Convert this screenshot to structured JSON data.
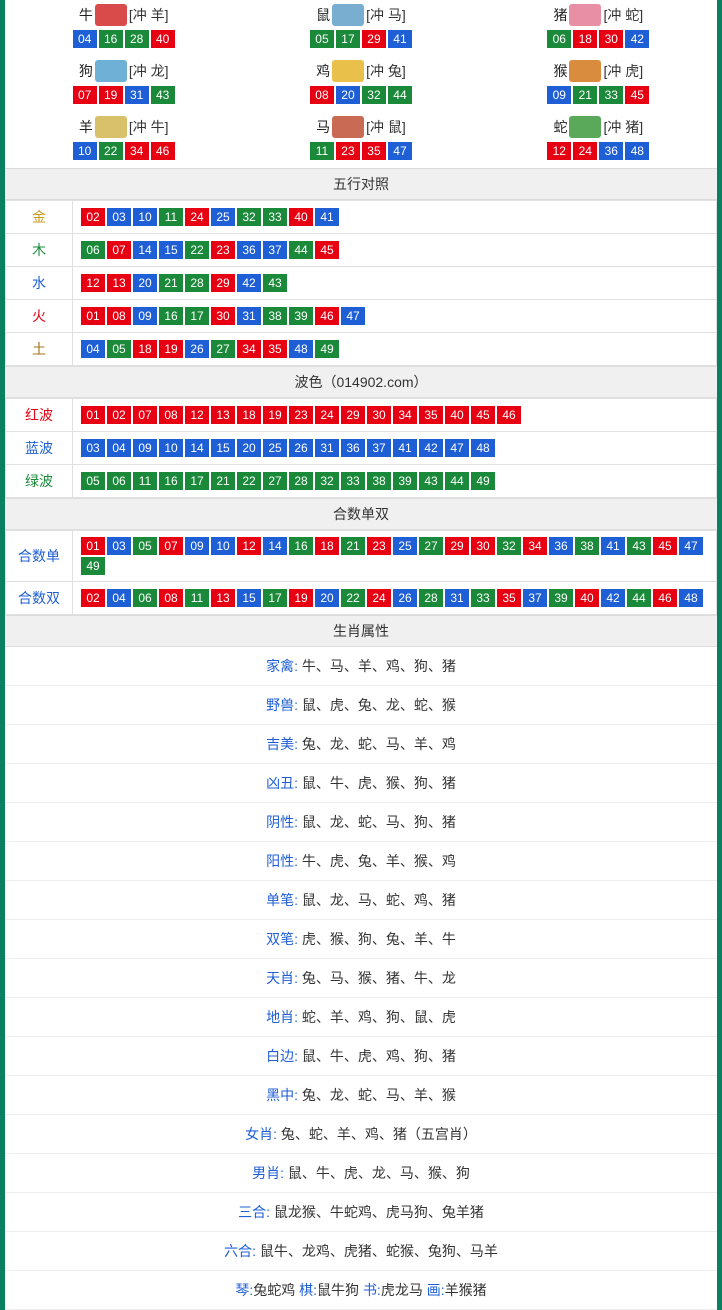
{
  "zodiacs": [
    {
      "name": "牛",
      "conflict": "[冲 羊]",
      "icon_color": "#d94b4b",
      "nums": [
        {
          "n": "04",
          "c": "blue"
        },
        {
          "n": "16",
          "c": "green"
        },
        {
          "n": "28",
          "c": "green"
        },
        {
          "n": "40",
          "c": "red"
        }
      ]
    },
    {
      "name": "鼠",
      "conflict": "[冲 马]",
      "icon_color": "#7aaed1",
      "nums": [
        {
          "n": "05",
          "c": "green"
        },
        {
          "n": "17",
          "c": "green"
        },
        {
          "n": "29",
          "c": "red"
        },
        {
          "n": "41",
          "c": "blue"
        }
      ]
    },
    {
      "name": "猪",
      "conflict": "[冲 蛇]",
      "icon_color": "#e88fa5",
      "nums": [
        {
          "n": "06",
          "c": "green"
        },
        {
          "n": "18",
          "c": "red"
        },
        {
          "n": "30",
          "c": "red"
        },
        {
          "n": "42",
          "c": "blue"
        }
      ]
    },
    {
      "name": "狗",
      "conflict": "[冲 龙]",
      "icon_color": "#6fb1d6",
      "nums": [
        {
          "n": "07",
          "c": "red"
        },
        {
          "n": "19",
          "c": "red"
        },
        {
          "n": "31",
          "c": "blue"
        },
        {
          "n": "43",
          "c": "green"
        }
      ]
    },
    {
      "name": "鸡",
      "conflict": "[冲 兔]",
      "icon_color": "#e8c04a",
      "nums": [
        {
          "n": "08",
          "c": "red"
        },
        {
          "n": "20",
          "c": "blue"
        },
        {
          "n": "32",
          "c": "green"
        },
        {
          "n": "44",
          "c": "green"
        }
      ]
    },
    {
      "name": "猴",
      "conflict": "[冲 虎]",
      "icon_color": "#d98b3e",
      "nums": [
        {
          "n": "09",
          "c": "blue"
        },
        {
          "n": "21",
          "c": "green"
        },
        {
          "n": "33",
          "c": "green"
        },
        {
          "n": "45",
          "c": "red"
        }
      ]
    },
    {
      "name": "羊",
      "conflict": "[冲 牛]",
      "icon_color": "#d9c06a",
      "nums": [
        {
          "n": "10",
          "c": "blue"
        },
        {
          "n": "22",
          "c": "green"
        },
        {
          "n": "34",
          "c": "red"
        },
        {
          "n": "46",
          "c": "red"
        }
      ]
    },
    {
      "name": "马",
      "conflict": "[冲 鼠]",
      "icon_color": "#c96a54",
      "nums": [
        {
          "n": "11",
          "c": "green"
        },
        {
          "n": "23",
          "c": "red"
        },
        {
          "n": "35",
          "c": "red"
        },
        {
          "n": "47",
          "c": "blue"
        }
      ]
    },
    {
      "name": "蛇",
      "conflict": "[冲 猪]",
      "icon_color": "#5aa85a",
      "nums": [
        {
          "n": "12",
          "c": "red"
        },
        {
          "n": "24",
          "c": "red"
        },
        {
          "n": "36",
          "c": "blue"
        },
        {
          "n": "48",
          "c": "blue"
        }
      ]
    }
  ],
  "sections": {
    "wuxing": {
      "title": "五行对照",
      "rows": [
        {
          "label": "金",
          "label_class": "c-gold",
          "nums": [
            {
              "n": "02",
              "c": "red"
            },
            {
              "n": "03",
              "c": "blue"
            },
            {
              "n": "10",
              "c": "blue"
            },
            {
              "n": "11",
              "c": "green"
            },
            {
              "n": "24",
              "c": "red"
            },
            {
              "n": "25",
              "c": "blue"
            },
            {
              "n": "32",
              "c": "green"
            },
            {
              "n": "33",
              "c": "green"
            },
            {
              "n": "40",
              "c": "red"
            },
            {
              "n": "41",
              "c": "blue"
            }
          ]
        },
        {
          "label": "木",
          "label_class": "c-wood",
          "nums": [
            {
              "n": "06",
              "c": "green"
            },
            {
              "n": "07",
              "c": "red"
            },
            {
              "n": "14",
              "c": "blue"
            },
            {
              "n": "15",
              "c": "blue"
            },
            {
              "n": "22",
              "c": "green"
            },
            {
              "n": "23",
              "c": "red"
            },
            {
              "n": "36",
              "c": "blue"
            },
            {
              "n": "37",
              "c": "blue"
            },
            {
              "n": "44",
              "c": "green"
            },
            {
              "n": "45",
              "c": "red"
            }
          ]
        },
        {
          "label": "水",
          "label_class": "c-water",
          "nums": [
            {
              "n": "12",
              "c": "red"
            },
            {
              "n": "13",
              "c": "red"
            },
            {
              "n": "20",
              "c": "blue"
            },
            {
              "n": "21",
              "c": "green"
            },
            {
              "n": "28",
              "c": "green"
            },
            {
              "n": "29",
              "c": "red"
            },
            {
              "n": "42",
              "c": "blue"
            },
            {
              "n": "43",
              "c": "green"
            }
          ]
        },
        {
          "label": "火",
          "label_class": "c-fire",
          "nums": [
            {
              "n": "01",
              "c": "red"
            },
            {
              "n": "08",
              "c": "red"
            },
            {
              "n": "09",
              "c": "blue"
            },
            {
              "n": "16",
              "c": "green"
            },
            {
              "n": "17",
              "c": "green"
            },
            {
              "n": "30",
              "c": "red"
            },
            {
              "n": "31",
              "c": "blue"
            },
            {
              "n": "38",
              "c": "green"
            },
            {
              "n": "39",
              "c": "green"
            },
            {
              "n": "46",
              "c": "red"
            },
            {
              "n": "47",
              "c": "blue"
            }
          ]
        },
        {
          "label": "土",
          "label_class": "c-earth",
          "nums": [
            {
              "n": "04",
              "c": "blue"
            },
            {
              "n": "05",
              "c": "green"
            },
            {
              "n": "18",
              "c": "red"
            },
            {
              "n": "19",
              "c": "red"
            },
            {
              "n": "26",
              "c": "blue"
            },
            {
              "n": "27",
              "c": "green"
            },
            {
              "n": "34",
              "c": "red"
            },
            {
              "n": "35",
              "c": "red"
            },
            {
              "n": "48",
              "c": "blue"
            },
            {
              "n": "49",
              "c": "green"
            }
          ]
        }
      ]
    },
    "bose": {
      "title": "波色（014902.com）",
      "rows": [
        {
          "label": "红波",
          "label_class": "c-red",
          "nums": [
            {
              "n": "01",
              "c": "red"
            },
            {
              "n": "02",
              "c": "red"
            },
            {
              "n": "07",
              "c": "red"
            },
            {
              "n": "08",
              "c": "red"
            },
            {
              "n": "12",
              "c": "red"
            },
            {
              "n": "13",
              "c": "red"
            },
            {
              "n": "18",
              "c": "red"
            },
            {
              "n": "19",
              "c": "red"
            },
            {
              "n": "23",
              "c": "red"
            },
            {
              "n": "24",
              "c": "red"
            },
            {
              "n": "29",
              "c": "red"
            },
            {
              "n": "30",
              "c": "red"
            },
            {
              "n": "34",
              "c": "red"
            },
            {
              "n": "35",
              "c": "red"
            },
            {
              "n": "40",
              "c": "red"
            },
            {
              "n": "45",
              "c": "red"
            },
            {
              "n": "46",
              "c": "red"
            }
          ]
        },
        {
          "label": "蓝波",
          "label_class": "c-blue",
          "nums": [
            {
              "n": "03",
              "c": "blue"
            },
            {
              "n": "04",
              "c": "blue"
            },
            {
              "n": "09",
              "c": "blue"
            },
            {
              "n": "10",
              "c": "blue"
            },
            {
              "n": "14",
              "c": "blue"
            },
            {
              "n": "15",
              "c": "blue"
            },
            {
              "n": "20",
              "c": "blue"
            },
            {
              "n": "25",
              "c": "blue"
            },
            {
              "n": "26",
              "c": "blue"
            },
            {
              "n": "31",
              "c": "blue"
            },
            {
              "n": "36",
              "c": "blue"
            },
            {
              "n": "37",
              "c": "blue"
            },
            {
              "n": "41",
              "c": "blue"
            },
            {
              "n": "42",
              "c": "blue"
            },
            {
              "n": "47",
              "c": "blue"
            },
            {
              "n": "48",
              "c": "blue"
            }
          ]
        },
        {
          "label": "绿波",
          "label_class": "c-green",
          "nums": [
            {
              "n": "05",
              "c": "green"
            },
            {
              "n": "06",
              "c": "green"
            },
            {
              "n": "11",
              "c": "green"
            },
            {
              "n": "16",
              "c": "green"
            },
            {
              "n": "17",
              "c": "green"
            },
            {
              "n": "21",
              "c": "green"
            },
            {
              "n": "22",
              "c": "green"
            },
            {
              "n": "27",
              "c": "green"
            },
            {
              "n": "28",
              "c": "green"
            },
            {
              "n": "32",
              "c": "green"
            },
            {
              "n": "33",
              "c": "green"
            },
            {
              "n": "38",
              "c": "green"
            },
            {
              "n": "39",
              "c": "green"
            },
            {
              "n": "43",
              "c": "green"
            },
            {
              "n": "44",
              "c": "green"
            },
            {
              "n": "49",
              "c": "green"
            }
          ]
        }
      ]
    },
    "heshu": {
      "title": "合数单双",
      "rows": [
        {
          "label": "合数单",
          "label_class": "c-blue",
          "nums": [
            {
              "n": "01",
              "c": "red"
            },
            {
              "n": "03",
              "c": "blue"
            },
            {
              "n": "05",
              "c": "green"
            },
            {
              "n": "07",
              "c": "red"
            },
            {
              "n": "09",
              "c": "blue"
            },
            {
              "n": "10",
              "c": "blue"
            },
            {
              "n": "12",
              "c": "red"
            },
            {
              "n": "14",
              "c": "blue"
            },
            {
              "n": "16",
              "c": "green"
            },
            {
              "n": "18",
              "c": "red"
            },
            {
              "n": "21",
              "c": "green"
            },
            {
              "n": "23",
              "c": "red"
            },
            {
              "n": "25",
              "c": "blue"
            },
            {
              "n": "27",
              "c": "green"
            },
            {
              "n": "29",
              "c": "red"
            },
            {
              "n": "30",
              "c": "red"
            },
            {
              "n": "32",
              "c": "green"
            },
            {
              "n": "34",
              "c": "red"
            },
            {
              "n": "36",
              "c": "blue"
            },
            {
              "n": "38",
              "c": "green"
            },
            {
              "n": "41",
              "c": "blue"
            },
            {
              "n": "43",
              "c": "green"
            },
            {
              "n": "45",
              "c": "red"
            },
            {
              "n": "47",
              "c": "blue"
            },
            {
              "n": "49",
              "c": "green"
            }
          ]
        },
        {
          "label": "合数双",
          "label_class": "c-blue",
          "nums": [
            {
              "n": "02",
              "c": "red"
            },
            {
              "n": "04",
              "c": "blue"
            },
            {
              "n": "06",
              "c": "green"
            },
            {
              "n": "08",
              "c": "red"
            },
            {
              "n": "11",
              "c": "green"
            },
            {
              "n": "13",
              "c": "red"
            },
            {
              "n": "15",
              "c": "blue"
            },
            {
              "n": "17",
              "c": "green"
            },
            {
              "n": "19",
              "c": "red"
            },
            {
              "n": "20",
              "c": "blue"
            },
            {
              "n": "22",
              "c": "green"
            },
            {
              "n": "24",
              "c": "red"
            },
            {
              "n": "26",
              "c": "blue"
            },
            {
              "n": "28",
              "c": "green"
            },
            {
              "n": "31",
              "c": "blue"
            },
            {
              "n": "33",
              "c": "green"
            },
            {
              "n": "35",
              "c": "red"
            },
            {
              "n": "37",
              "c": "blue"
            },
            {
              "n": "39",
              "c": "green"
            },
            {
              "n": "40",
              "c": "red"
            },
            {
              "n": "42",
              "c": "blue"
            },
            {
              "n": "44",
              "c": "green"
            },
            {
              "n": "46",
              "c": "red"
            },
            {
              "n": "48",
              "c": "blue"
            }
          ]
        }
      ]
    },
    "attrs": {
      "title": "生肖属性",
      "rows": [
        {
          "label": "家禽:",
          "value": " 牛、马、羊、鸡、狗、猪"
        },
        {
          "label": "野兽:",
          "value": " 鼠、虎、兔、龙、蛇、猴"
        },
        {
          "label": "吉美:",
          "value": " 兔、龙、蛇、马、羊、鸡"
        },
        {
          "label": "凶丑:",
          "value": " 鼠、牛、虎、猴、狗、猪"
        },
        {
          "label": "阴性:",
          "value": " 鼠、龙、蛇、马、狗、猪"
        },
        {
          "label": "阳性:",
          "value": " 牛、虎、兔、羊、猴、鸡"
        },
        {
          "label": "单笔:",
          "value": " 鼠、龙、马、蛇、鸡、猪"
        },
        {
          "label": "双笔:",
          "value": " 虎、猴、狗、兔、羊、牛"
        },
        {
          "label": "天肖:",
          "value": " 兔、马、猴、猪、牛、龙"
        },
        {
          "label": "地肖:",
          "value": " 蛇、羊、鸡、狗、鼠、虎"
        },
        {
          "label": "白边:",
          "value": " 鼠、牛、虎、鸡、狗、猪"
        },
        {
          "label": "黑中:",
          "value": " 兔、龙、蛇、马、羊、猴"
        },
        {
          "label": "女肖:",
          "value": " 兔、蛇、羊、鸡、猪（五宫肖）"
        },
        {
          "label": "男肖:",
          "value": " 鼠、牛、虎、龙、马、猴、狗"
        },
        {
          "label": "三合:",
          "value": " 鼠龙猴、牛蛇鸡、虎马狗、兔羊猪"
        },
        {
          "label": "六合:",
          "value": " 鼠牛、龙鸡、虎猪、蛇猴、兔狗、马羊"
        }
      ],
      "footer": {
        "parts": [
          {
            "label": "琴:",
            "value": "兔蛇鸡  "
          },
          {
            "label": "棋:",
            "value": "鼠牛狗  "
          },
          {
            "label": "书:",
            "value": "虎龙马  "
          },
          {
            "label": "画:",
            "value": "羊猴猪"
          }
        ]
      }
    }
  }
}
